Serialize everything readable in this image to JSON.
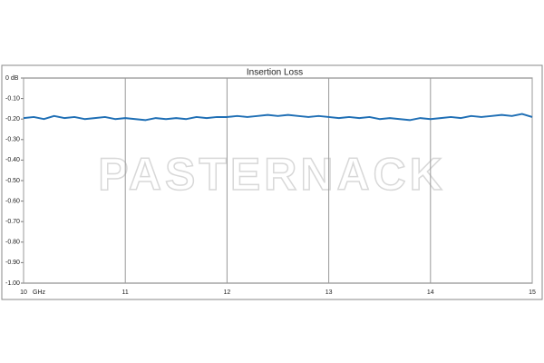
{
  "chart_data": {
    "type": "line",
    "title": "Insertion Loss",
    "x_label": "GHz",
    "watermark": "PASTERNACK",
    "x": [
      10.0,
      10.1,
      10.2,
      10.3,
      10.4,
      10.5,
      10.6,
      10.7,
      10.8,
      10.9,
      11.0,
      11.1,
      11.2,
      11.3,
      11.4,
      11.5,
      11.6,
      11.7,
      11.8,
      11.9,
      12.0,
      12.1,
      12.2,
      12.3,
      12.4,
      12.5,
      12.6,
      12.7,
      12.8,
      12.9,
      13.0,
      13.1,
      13.2,
      13.3,
      13.4,
      13.5,
      13.6,
      13.7,
      13.8,
      13.9,
      14.0,
      14.1,
      14.2,
      14.3,
      14.4,
      14.5,
      14.6,
      14.7,
      14.8,
      14.9,
      15.0
    ],
    "values": [
      -0.195,
      -0.19,
      -0.2,
      -0.185,
      -0.195,
      -0.19,
      -0.2,
      -0.195,
      -0.19,
      -0.2,
      -0.195,
      -0.2,
      -0.205,
      -0.195,
      -0.2,
      -0.195,
      -0.2,
      -0.19,
      -0.195,
      -0.19,
      -0.19,
      -0.185,
      -0.19,
      -0.185,
      -0.18,
      -0.185,
      -0.18,
      -0.185,
      -0.19,
      -0.185,
      -0.19,
      -0.195,
      -0.19,
      -0.195,
      -0.19,
      -0.2,
      -0.195,
      -0.2,
      -0.205,
      -0.195,
      -0.2,
      -0.195,
      -0.19,
      -0.195,
      -0.185,
      -0.19,
      -0.185,
      -0.18,
      -0.185,
      -0.175,
      -0.19
    ],
    "color": "#1f6fb5",
    "xlim": [
      10,
      15
    ],
    "xticks": [
      10,
      11,
      12,
      13,
      14,
      15
    ],
    "ylim": [
      -1,
      0
    ],
    "yticks": [
      {
        "value": 0,
        "label": "0 dB"
      },
      {
        "value": -0.1,
        "label": "-0.10"
      },
      {
        "value": -0.2,
        "label": "-0.20"
      },
      {
        "value": -0.3,
        "label": "-0.30"
      },
      {
        "value": -0.4,
        "label": "-0.40"
      },
      {
        "value": -0.5,
        "label": "-0.50"
      },
      {
        "value": -0.6,
        "label": "-0.60"
      },
      {
        "value": -0.7,
        "label": "-0.70"
      },
      {
        "value": -0.8,
        "label": "-0.80"
      },
      {
        "value": -0.9,
        "label": "-0.90"
      },
      {
        "value": -1,
        "label": "-1.00"
      }
    ],
    "grid": "x"
  }
}
